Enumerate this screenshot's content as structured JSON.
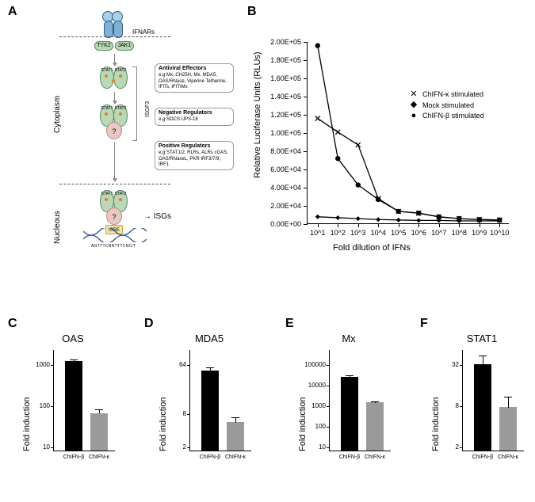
{
  "panelLabels": {
    "A": "A",
    "B": "B",
    "C": "C",
    "D": "D",
    "E": "E",
    "F": "F"
  },
  "diagram": {
    "ifnars": "IFNARs",
    "tyk2": "TYK2",
    "jak1": "JAK1",
    "stat1": "STAT1",
    "stat2": "STAT2",
    "isgf3": "ISGF3",
    "isre": "ISRE",
    "isgs": "ISGs",
    "cytoplasm": "Cytoplasm",
    "nucleus": "Nucleous",
    "consensus": "AGTTTCNNTTTCNC/T",
    "boxes": {
      "antiviral": {
        "title": "Antiviral Effectors",
        "body": "e.g Mx, CH25H, Mx, MDA5, OAS/RNase, Viperine Tetherine, IFITs, IFITIMs"
      },
      "negative": {
        "title": "Negative Regulators",
        "body": "e.g SOCS UPS-18"
      },
      "positive": {
        "title": "Positive Regulators",
        "body": "e.g STAT1/2, RLRs, ALRs cGAS, OAS/RNaseL, PKR IRF3/7/9, IRF1"
      }
    }
  },
  "chartB": {
    "ylabel": "Relative Luciferase Units (RLUs)",
    "xlabel": "Fold dilution of IFNs",
    "ylim": [
      0,
      200000
    ],
    "yticks": [
      0,
      20000,
      40000,
      60000,
      80000,
      100000,
      120000,
      140000,
      160000,
      180000,
      200000
    ],
    "yticklabels": [
      "0.00E+00",
      "2.00E+04",
      "4.00E+04",
      "6.00E+04",
      "8.00E+04",
      "1.00E+05",
      "1.20E+05",
      "1.40E+05",
      "1.60E+05",
      "1.80E+05",
      "2.00E+05"
    ],
    "xticks": [
      "10^1",
      "10^2",
      "10^3",
      "10^4",
      "10^5",
      "10^6",
      "10^7",
      "10^8",
      "10^9",
      "10^10"
    ],
    "legend": [
      {
        "marker": "x",
        "label": "ChIFN-κ stimulated"
      },
      {
        "marker": "diamond",
        "label": "Mock stimulated"
      },
      {
        "marker": "circle",
        "label": "ChIFN-β stimulated"
      }
    ],
    "series": {
      "beta": {
        "marker": "circle",
        "values": [
          196000,
          72000,
          43000,
          27000,
          14000,
          12000,
          8000,
          6000,
          5000,
          4500
        ]
      },
      "kappa": {
        "marker": "x",
        "values": [
          116000,
          101000,
          87000,
          28000,
          14000,
          12000,
          8000,
          6000,
          5000,
          4500
        ]
      },
      "mock": {
        "marker": "diamond",
        "values": [
          8000,
          7000,
          6000,
          5000,
          4500,
          4000,
          4000,
          3500,
          3500,
          3500
        ]
      }
    },
    "colors": {
      "line": "#000000",
      "bg": "#ffffff"
    }
  },
  "bars": {
    "ylabel": "Fold induction",
    "xlabels": [
      "ChIFN-β",
      "ChIFN-κ"
    ],
    "colors": {
      "beta": "#000000",
      "kappa": "#9a9a9a"
    },
    "C": {
      "title": "OAS",
      "scale": "log",
      "ticks": [
        10,
        100,
        1000
      ],
      "ticklabels": [
        "10",
        "100",
        "1000"
      ],
      "beta": {
        "val": 1200,
        "err": 160
      },
      "kappa": {
        "val": 65,
        "err": 18
      }
    },
    "D": {
      "title": "MDA5",
      "scale": "log2",
      "ticks": [
        2,
        8,
        64
      ],
      "ticklabels": [
        "2",
        "8",
        "64"
      ],
      "beta": {
        "val": 48,
        "err": 10
      },
      "kappa": {
        "val": 5.5,
        "err": 1.5
      }
    },
    "E": {
      "title": "Mx",
      "scale": "log",
      "ticks": [
        10,
        100,
        1000,
        10000,
        100000
      ],
      "ticklabels": [
        "10",
        "100",
        "1000",
        "10000",
        "100000"
      ],
      "beta": {
        "val": 24000,
        "err": 7000
      },
      "kappa": {
        "val": 1400,
        "err": 300
      }
    },
    "F": {
      "title": "STAT1",
      "scale": "log2",
      "ticks": [
        2,
        8,
        32
      ],
      "ticklabels": [
        "2",
        "8",
        "32"
      ],
      "beta": {
        "val": 32,
        "err": 12
      },
      "kappa": {
        "val": 7.5,
        "err": 3.5
      }
    }
  }
}
